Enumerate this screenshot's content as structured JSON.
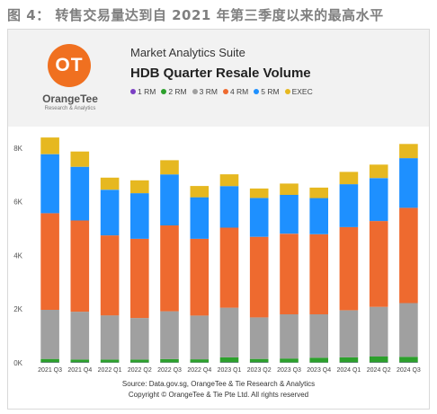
{
  "caption": "图 4：  转售交易量达到自 2021 年第三季度以来的最高水平",
  "logo": {
    "mark": "OT",
    "name": "OrangeTee",
    "subtitle": "Research & Analytics"
  },
  "suite": "Market Analytics Suite",
  "footer": {
    "source": "Source: Data.gov.sg, OrangeTee & Tie Research & Analytics",
    "copyright": "Copyright © OrangeTee & Tie Pte Ltd. All rights reserved"
  },
  "chart_data": {
    "type": "bar",
    "stacked": true,
    "title": "HDB Quarter Resale Volume",
    "xlabel": "",
    "ylabel": "",
    "ylim": [
      0,
      8600
    ],
    "yticks": [
      0,
      2000,
      4000,
      6000,
      8000
    ],
    "ytick_labels": [
      "0K",
      "2K",
      "4K",
      "6K",
      "8K"
    ],
    "grid": false,
    "legend_position": "top",
    "categories": [
      "2021 Q3",
      "2021 Q4",
      "2022 Q1",
      "2022 Q2",
      "2022 Q3",
      "2022 Q4",
      "2023 Q1",
      "2023 Q2",
      "2023 Q3",
      "2023 Q4",
      "2024 Q1",
      "2024 Q2",
      "2024 Q3"
    ],
    "series": [
      {
        "name": "1 RM",
        "color": "#7b3fc4",
        "values": [
          15,
          15,
          10,
          10,
          10,
          10,
          15,
          15,
          10,
          10,
          15,
          15,
          15
        ]
      },
      {
        "name": "2 RM",
        "color": "#2ca02c",
        "values": [
          130,
          110,
          110,
          110,
          130,
          120,
          190,
          130,
          150,
          180,
          190,
          220,
          210
        ]
      },
      {
        "name": "3 RM",
        "color": "#a0a0a0",
        "values": [
          1830,
          1780,
          1650,
          1550,
          1780,
          1630,
          1850,
          1550,
          1650,
          1620,
          1750,
          1850,
          2000
        ]
      },
      {
        "name": "4 RM",
        "color": "#ee6a2f",
        "values": [
          3600,
          3400,
          2980,
          2950,
          3200,
          2860,
          2980,
          3000,
          3000,
          2980,
          3100,
          3200,
          3550
        ]
      },
      {
        "name": "5 RM",
        "color": "#1e90ff",
        "values": [
          2200,
          2000,
          1700,
          1700,
          1900,
          1550,
          1550,
          1450,
          1450,
          1350,
          1600,
          1600,
          1850
        ]
      },
      {
        "name": "EXEC",
        "color": "#e6b820",
        "values": [
          620,
          570,
          450,
          480,
          530,
          420,
          440,
          350,
          420,
          390,
          460,
          500,
          530
        ]
      }
    ]
  }
}
